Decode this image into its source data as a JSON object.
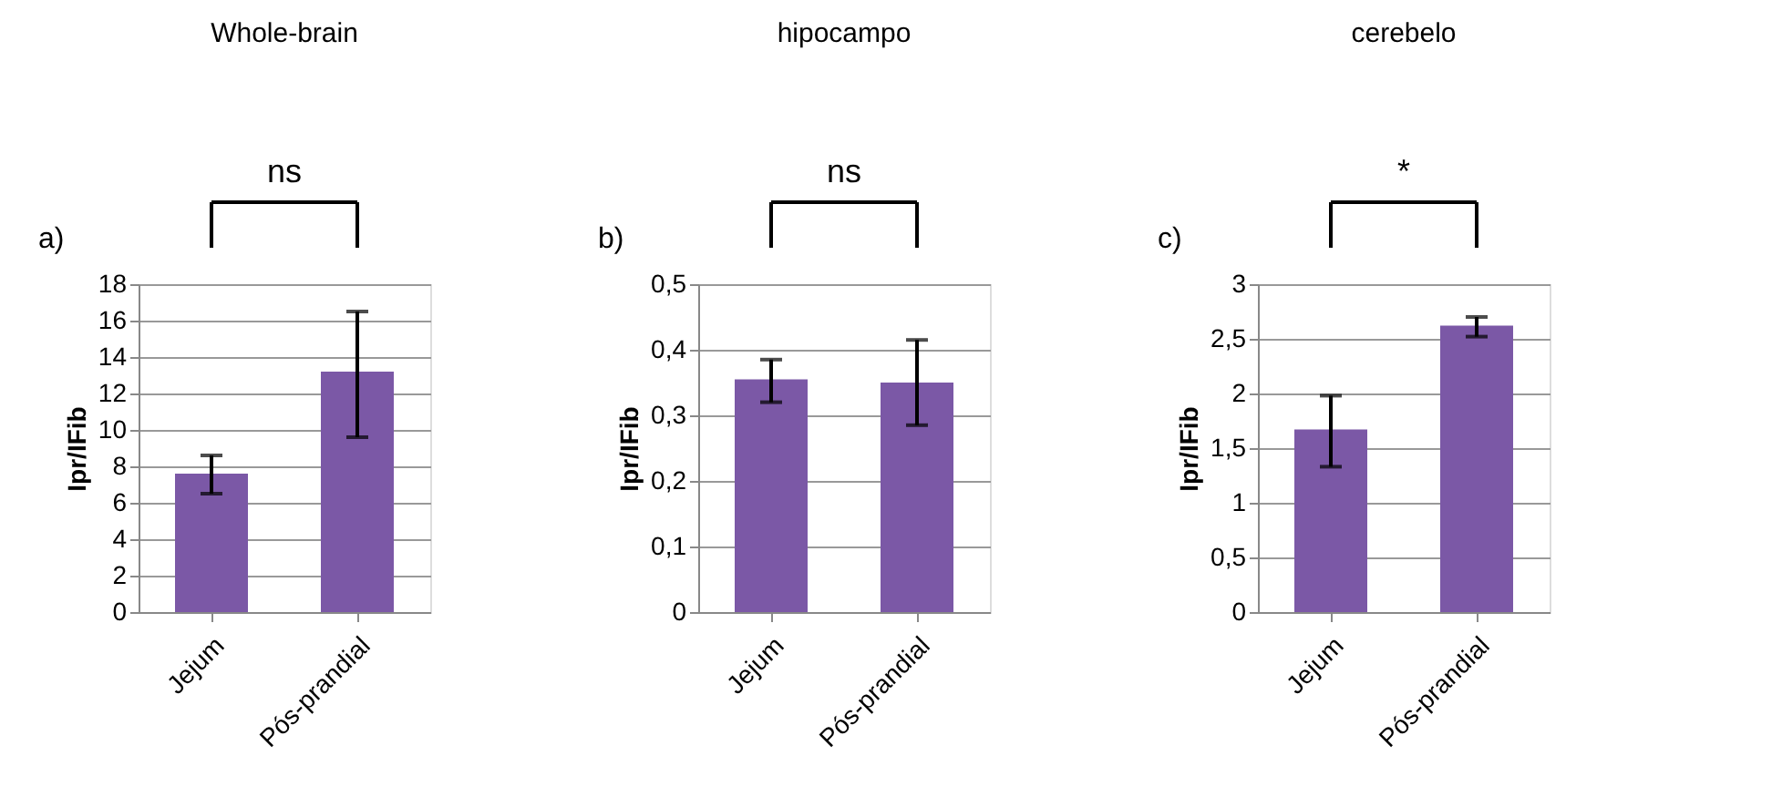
{
  "chart_data": [
    {
      "type": "bar",
      "title": "Whole-brain",
      "ylabel": "Ipr/IFib",
      "categories": [
        "Jejum",
        "Pós-prandial"
      ],
      "values": [
        7.6,
        13.2
      ],
      "errors": [
        [
          6.5,
          8.6
        ],
        [
          9.6,
          16.5
        ]
      ],
      "color": "#7b58a6",
      "ylim": [
        0,
        18
      ],
      "yticks": [
        0,
        2,
        4,
        6,
        8,
        10,
        12,
        14,
        16,
        18
      ],
      "grid": "y",
      "annotations": [
        "a)",
        "ns"
      ]
    },
    {
      "type": "bar",
      "title": "hipocampo",
      "ylabel": "Ipr/IFib",
      "categories": [
        "Jejum",
        "Pós-prandial"
      ],
      "values": [
        0.355,
        0.35
      ],
      "errors": [
        [
          0.32,
          0.385
        ],
        [
          0.285,
          0.415
        ]
      ],
      "color": "#7b58a6",
      "ylim": [
        0,
        0.5
      ],
      "yticks": [
        0,
        {
          "value": 0.1,
          "label": "0,1"
        },
        {
          "value": 0.2,
          "label": "0,2"
        },
        {
          "value": 0.3,
          "label": "0,3"
        },
        {
          "value": 0.4,
          "label": "0,4"
        },
        {
          "value": 0.5,
          "label": "0,5"
        }
      ],
      "grid": "y",
      "annotations": [
        "b)",
        "ns"
      ]
    },
    {
      "type": "bar",
      "title": "cerebelo",
      "ylabel": "Ipr/IFib",
      "categories": [
        "Jejum",
        "Pós-prandial"
      ],
      "values": [
        1.67,
        2.62
      ],
      "errors": [
        [
          1.33,
          1.98
        ],
        [
          2.52,
          2.7
        ]
      ],
      "color": "#7b58a6",
      "ylim": [
        0,
        3
      ],
      "yticks": [
        0,
        {
          "value": 0.5,
          "label": "0,5"
        },
        1,
        {
          "value": 1.5,
          "label": "1,5"
        },
        2,
        {
          "value": 2.5,
          "label": "2,5"
        },
        3
      ],
      "grid": "y",
      "annotations": [
        "c)",
        "*"
      ]
    }
  ]
}
